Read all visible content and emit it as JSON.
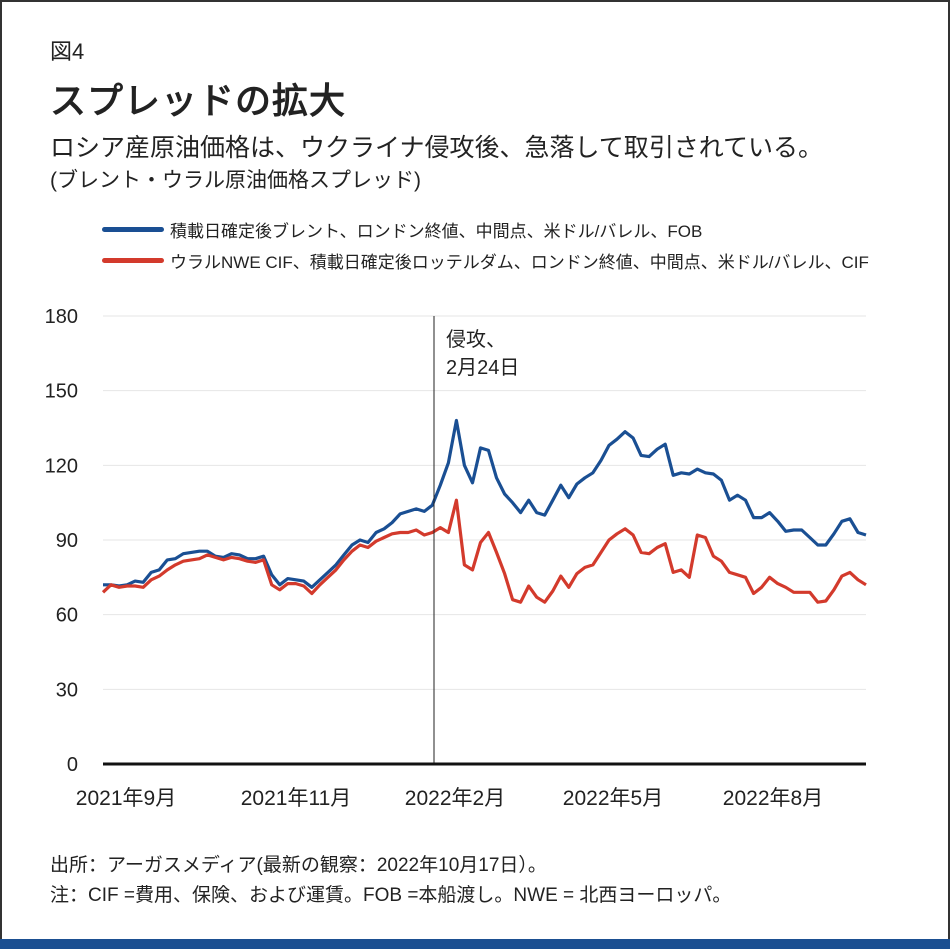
{
  "figure_label": "図4",
  "title": "スプレッドの拡大",
  "subtitle": "ロシア産原油価格は、ウクライナ侵攻後、急落して取引されている。",
  "subtitle2": "(ブレント・ウラル原油価格スプレッド)",
  "source": "出所：アーガスメディア(最新の観察：2022年10月17日）。",
  "note": "注：CIF =費用、保険、および運賃。FOB =本船渡し。NWE = 北西ヨーロッパ。",
  "colors": {
    "brent": "#1a4f93",
    "urals": "#d33a2c",
    "bar": "#1b4f91"
  },
  "chart_data": {
    "type": "line",
    "ylim": [
      0,
      180
    ],
    "y_ticks": [
      0,
      30,
      60,
      90,
      120,
      150,
      180
    ],
    "x_tick_labels": [
      "2021年9月",
      "2021年11月",
      "2022年2月",
      "2022年5月",
      "2022年8月"
    ],
    "grid": "horizontal",
    "legend_placement": "top-left",
    "annotation": {
      "line1": "侵攻、",
      "line2": "2月24日"
    },
    "series": [
      {
        "name": "積載日確定後ブレント、ロンドン終値、中間点、米ドル/バレル、FOB",
        "color": "#1a4f93",
        "values": [
          72,
          72,
          71.5,
          72,
          73.5,
          73,
          77,
          78,
          82,
          82.5,
          84.5,
          85,
          85.5,
          85.5,
          83.5,
          83,
          84.5,
          84,
          82.5,
          82.5,
          83.5,
          76,
          72,
          74.5,
          74,
          73.5,
          71,
          74,
          77,
          80,
          84,
          88,
          90,
          89,
          93,
          94.5,
          97,
          100.5,
          101.5,
          102.5,
          101.5,
          104,
          112,
          121,
          138,
          120,
          113,
          127,
          126,
          115,
          108.5,
          105,
          101,
          106,
          101,
          100,
          106,
          112,
          107,
          112.5,
          115,
          117,
          122,
          128,
          130.5,
          133.5,
          131,
          124,
          123.5,
          126.5,
          128.5,
          116,
          117,
          116.5,
          118.5,
          117,
          116.5,
          114,
          106,
          108,
          106,
          99,
          99,
          101,
          97.5,
          93.5,
          94,
          94,
          91,
          88,
          88,
          92.5,
          97.5,
          98.5,
          93,
          92
        ]
      },
      {
        "name": "ウラルNWE CIF、積載日確定後ロッテルダム、ロンドン終値、中間点、米ドル/バレル、CIF",
        "color": "#d33a2c",
        "values": [
          69,
          72,
          71,
          71.5,
          71.5,
          71,
          74,
          75.5,
          78,
          80,
          81.5,
          82,
          82.5,
          84,
          83,
          82,
          83,
          82.5,
          81.5,
          81,
          82,
          72,
          70,
          72.5,
          72.5,
          71.5,
          68.5,
          72,
          75,
          78,
          82,
          85.5,
          88,
          87,
          89.5,
          91,
          92.5,
          93,
          93,
          94,
          92,
          93,
          95,
          93,
          106,
          80,
          78,
          89,
          93,
          85,
          76.5,
          66,
          65,
          71.5,
          67,
          65,
          69.5,
          75.5,
          71,
          76.5,
          79,
          80,
          85,
          90,
          92.5,
          94.5,
          92,
          85,
          84.5,
          87,
          88.5,
          77,
          78,
          75,
          92,
          91,
          83.5,
          81.5,
          77,
          76,
          75,
          68.5,
          71,
          75,
          72.5,
          71,
          69,
          69,
          69,
          65,
          65.5,
          70,
          75.5,
          77,
          74,
          72
        ]
      }
    ]
  }
}
